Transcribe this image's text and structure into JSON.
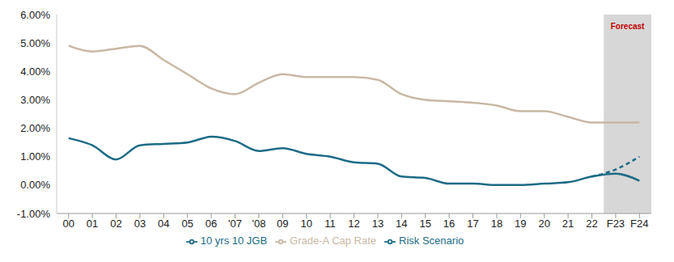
{
  "chart_data": {
    "type": "line",
    "categories": [
      "00",
      "01",
      "02",
      "03",
      "04",
      "05",
      "06",
      "'07",
      "'08",
      "09",
      "10",
      "11",
      "12",
      "13",
      "14",
      "15",
      "16",
      "17",
      "18",
      "19",
      "20",
      "21",
      "22",
      "F23",
      "F24"
    ],
    "series": [
      {
        "name": "Grade-A Cap Rate",
        "color": "#c9b8a5",
        "line_style": "solid",
        "values": [
          4.9,
          4.7,
          4.8,
          4.9,
          4.4,
          3.9,
          3.4,
          3.2,
          3.6,
          3.9,
          3.8,
          3.8,
          3.8,
          3.7,
          3.2,
          3.0,
          2.95,
          2.9,
          2.8,
          2.6,
          2.6,
          2.4,
          2.2,
          2.2,
          2.2
        ]
      },
      {
        "name": "10 yrs 10 JGB",
        "color": "#1d6b86",
        "line_style": "solid",
        "values": [
          1.65,
          1.4,
          0.9,
          1.4,
          1.45,
          1.5,
          1.7,
          1.55,
          1.2,
          1.3,
          1.1,
          1.0,
          0.8,
          0.75,
          0.3,
          0.25,
          0.05,
          0.05,
          0.0,
          0.0,
          0.05,
          0.1,
          0.3,
          0.4,
          0.15
        ]
      },
      {
        "name": "Risk Scenario",
        "color": "#1d6b86",
        "line_style": "dashed",
        "values": [
          null,
          null,
          null,
          null,
          null,
          null,
          null,
          null,
          null,
          null,
          null,
          null,
          null,
          null,
          null,
          null,
          null,
          null,
          null,
          null,
          null,
          null,
          0.3,
          0.55,
          1.0
        ]
      }
    ],
    "ylim": [
      -1,
      6
    ],
    "yticks": [
      {
        "value": -1,
        "label": "-1.00%"
      },
      {
        "value": 0,
        "label": "0.00%"
      },
      {
        "value": 1,
        "label": "1.00%"
      },
      {
        "value": 2,
        "label": "2.00%"
      },
      {
        "value": 3,
        "label": "3.00%"
      },
      {
        "value": 4,
        "label": "4.00%"
      },
      {
        "value": 5,
        "label": "5.00%"
      },
      {
        "value": 6,
        "label": "6.00%"
      }
    ],
    "grid": false,
    "legend": "bottom",
    "annotations": [
      {
        "text": "Forecast",
        "from": "F23",
        "to": "F24",
        "color": "#c00000"
      }
    ]
  }
}
